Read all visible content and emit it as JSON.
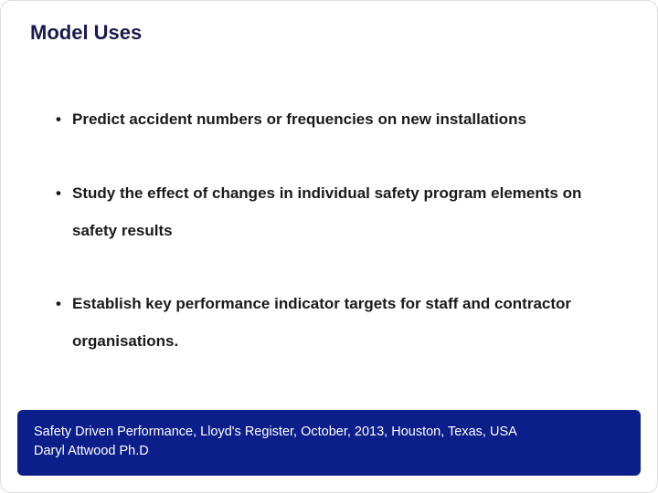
{
  "slide": {
    "title": "Model Uses",
    "title_color": "#1a1a4d",
    "background_color": "#ffffff",
    "bullets": [
      {
        "text": "Predict accident numbers or frequencies on new installations"
      },
      {
        "text": "Study the effect of changes in individual safety program elements on safety results"
      },
      {
        "text": "Establish key performance indicator targets for staff and contractor organisations."
      }
    ],
    "bullet_marker": "•",
    "body_fontsize": 17,
    "body_fontweight": "bold",
    "footer": {
      "line1": "Safety Driven Performance, Lloyd's Register, October, 2013, Houston, Texas, USA",
      "line2": "Daryl Attwood Ph.D",
      "background_color": "#0b1e8a",
      "text_color": "#ffffff"
    }
  }
}
